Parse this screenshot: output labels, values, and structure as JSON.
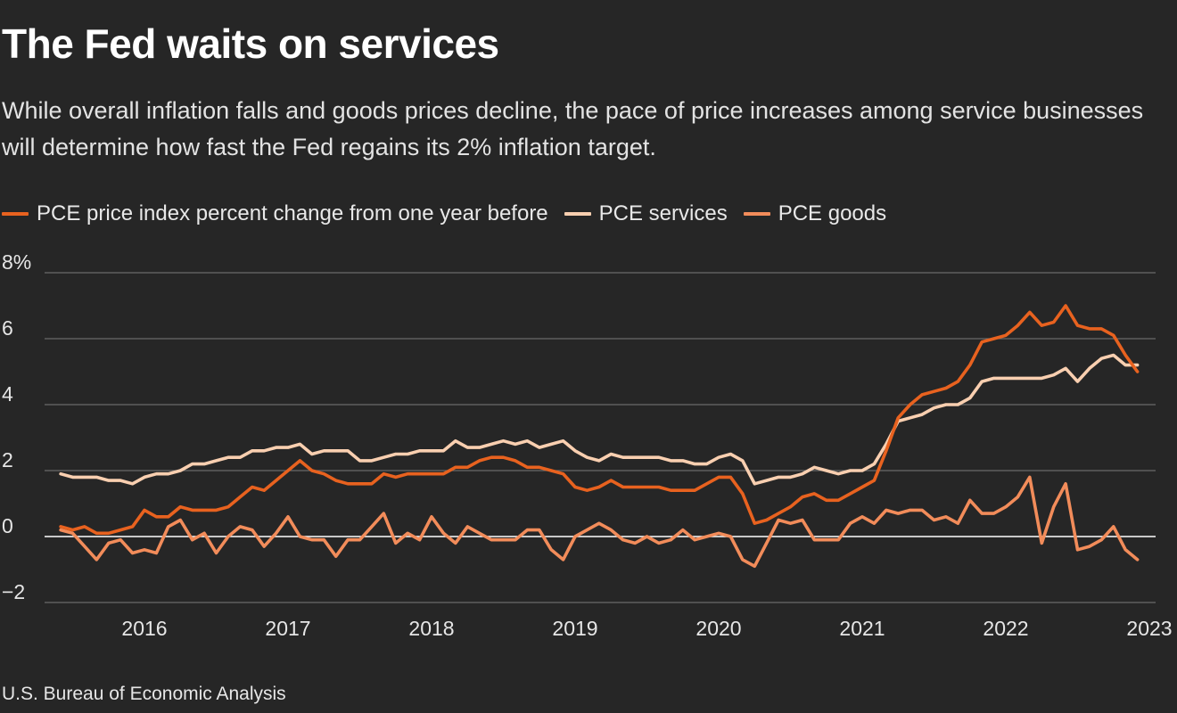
{
  "colors": {
    "background": "#262626",
    "grid": "#6a6a6a",
    "zero_line": "#ffffff",
    "pce_total": "#e8621f",
    "pce_services": "#f9cfb0",
    "pce_goods": "#f28c5a"
  },
  "source": "U.S. Bureau of Economic Analysis",
  "chart_data": {
    "type": "line",
    "title": "The Fed waits on services",
    "subtitle": "While overall inflation falls and goods prices decline, the pace of price increases among service businesses will determine how fast the Fed regains its 2% inflation target.",
    "xlabel": "",
    "ylabel": "",
    "ylim": [
      -2,
      8
    ],
    "yticks": [
      8,
      6,
      4,
      2,
      0,
      -2
    ],
    "ytick_labels": [
      "8%",
      "6",
      "4",
      "2",
      "0",
      "−2"
    ],
    "xlim": [
      "2015-04",
      "2023-01"
    ],
    "xticks": [
      2016,
      2017,
      2018,
      2019,
      2020,
      2021,
      2022,
      2023
    ],
    "xtick_labels": [
      "2016",
      "2017",
      "2018",
      "2019",
      "2020",
      "2021",
      "2022",
      "2023"
    ],
    "x_start": "2015-06",
    "x_end": "2022-12",
    "frequency": "monthly",
    "grid": true,
    "legend_position": "top-left",
    "series": [
      {
        "name": "PCE price index percent change from one year before",
        "color": "#e8621f",
        "values": [
          0.3,
          0.2,
          0.3,
          0.1,
          0.1,
          0.2,
          0.3,
          0.8,
          0.6,
          0.6,
          0.9,
          0.8,
          0.8,
          0.8,
          0.9,
          1.2,
          1.5,
          1.4,
          1.7,
          2.0,
          2.3,
          2.0,
          1.9,
          1.7,
          1.6,
          1.6,
          1.6,
          1.9,
          1.8,
          1.9,
          1.9,
          1.9,
          1.9,
          2.1,
          2.1,
          2.3,
          2.4,
          2.4,
          2.3,
          2.1,
          2.1,
          2.0,
          1.9,
          1.5,
          1.4,
          1.5,
          1.7,
          1.5,
          1.5,
          1.5,
          1.5,
          1.4,
          1.4,
          1.4,
          1.6,
          1.8,
          1.8,
          1.3,
          0.4,
          0.5,
          0.7,
          0.9,
          1.2,
          1.3,
          1.1,
          1.1,
          1.3,
          1.5,
          1.7,
          2.6,
          3.6,
          4.0,
          4.3,
          4.4,
          4.5,
          4.7,
          5.2,
          5.9,
          6.0,
          6.1,
          6.4,
          6.8,
          6.4,
          6.5,
          7.0,
          6.4,
          6.3,
          6.3,
          6.1,
          5.5,
          5.0
        ]
      },
      {
        "name": "PCE services",
        "color": "#f9cfb0",
        "values": [
          1.9,
          1.8,
          1.8,
          1.8,
          1.7,
          1.7,
          1.6,
          1.8,
          1.9,
          1.9,
          2.0,
          2.2,
          2.2,
          2.3,
          2.4,
          2.4,
          2.6,
          2.6,
          2.7,
          2.7,
          2.8,
          2.5,
          2.6,
          2.6,
          2.6,
          2.3,
          2.3,
          2.4,
          2.5,
          2.5,
          2.6,
          2.6,
          2.6,
          2.9,
          2.7,
          2.7,
          2.8,
          2.9,
          2.8,
          2.9,
          2.7,
          2.8,
          2.9,
          2.6,
          2.4,
          2.3,
          2.5,
          2.4,
          2.4,
          2.4,
          2.4,
          2.3,
          2.3,
          2.2,
          2.2,
          2.4,
          2.5,
          2.3,
          1.6,
          1.7,
          1.8,
          1.8,
          1.9,
          2.1,
          2.0,
          1.9,
          2.0,
          2.0,
          2.2,
          2.8,
          3.5,
          3.6,
          3.7,
          3.9,
          4.0,
          4.0,
          4.2,
          4.7,
          4.8,
          4.8,
          4.8,
          4.8,
          4.8,
          4.9,
          5.1,
          4.7,
          5.1,
          5.4,
          5.5,
          5.2,
          5.2
        ]
      },
      {
        "name": "PCE goods",
        "color": "#f28c5a",
        "values": [
          0.2,
          0.1,
          -0.3,
          -0.7,
          -0.2,
          -0.1,
          -0.5,
          -0.4,
          -0.5,
          0.3,
          0.5,
          -0.1,
          0.1,
          -0.5,
          0.0,
          0.3,
          0.2,
          -0.3,
          0.1,
          0.6,
          0.0,
          -0.1,
          -0.1,
          -0.6,
          -0.1,
          -0.1,
          0.3,
          0.7,
          -0.2,
          0.1,
          -0.1,
          0.6,
          0.1,
          -0.2,
          0.3,
          0.1,
          -0.1,
          -0.1,
          -0.1,
          0.2,
          0.2,
          -0.4,
          -0.7,
          0.0,
          0.2,
          0.4,
          0.2,
          -0.1,
          -0.2,
          0.0,
          -0.2,
          -0.1,
          0.2,
          -0.1,
          0.0,
          0.1,
          0.0,
          -0.7,
          -0.9,
          -0.2,
          0.5,
          0.4,
          0.5,
          -0.1,
          -0.1,
          -0.1,
          0.4,
          0.6,
          0.4,
          0.8,
          0.7,
          0.8,
          0.8,
          0.5,
          0.6,
          0.4,
          1.1,
          0.7,
          0.7,
          0.9,
          1.2,
          1.8,
          -0.2,
          0.9,
          1.6,
          -0.4,
          -0.3,
          -0.1,
          0.3,
          -0.4,
          -0.7
        ]
      }
    ]
  }
}
